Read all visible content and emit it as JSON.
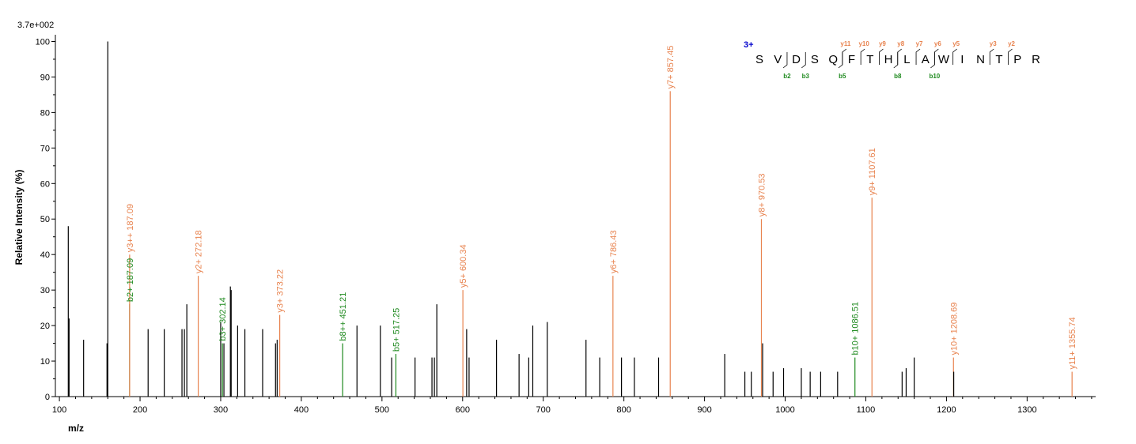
{
  "chart_data": {
    "type": "bar",
    "intensity_scale": "3.7e+002",
    "xlabel": "m/z",
    "ylabel": "Relative   Intensity (%)",
    "xlim": [
      95,
      1385
    ],
    "ylim": [
      0,
      101
    ],
    "xticks": [
      100,
      200,
      300,
      400,
      500,
      600,
      700,
      800,
      900,
      1000,
      1100,
      1200,
      1300
    ],
    "yticks": [
      0,
      10,
      20,
      30,
      40,
      50,
      60,
      70,
      80,
      90,
      100
    ],
    "colors": {
      "unassigned": "#000000",
      "y_ion": "#e8834f",
      "b_ion": "#1f8a1f",
      "charge": "#0000cc"
    },
    "peaks": [
      {
        "mz": 111,
        "rel": 48
      },
      {
        "mz": 112,
        "rel": 22
      },
      {
        "mz": 130,
        "rel": 16
      },
      {
        "mz": 159,
        "rel": 15
      },
      {
        "mz": 160,
        "rel": 100
      },
      {
        "mz": 187.09,
        "rel": 26,
        "ion": "b",
        "label": "b2+ 187.09"
      },
      {
        "mz": 187.09,
        "rel": 40,
        "ion": "y",
        "label": "y3++ 187.09"
      },
      {
        "mz": 210,
        "rel": 19
      },
      {
        "mz": 230,
        "rel": 19
      },
      {
        "mz": 252,
        "rel": 19
      },
      {
        "mz": 255,
        "rel": 19
      },
      {
        "mz": 258,
        "rel": 26
      },
      {
        "mz": 272.18,
        "rel": 34,
        "ion": "y",
        "label": "y2+ 272.18"
      },
      {
        "mz": 300,
        "rel": 21
      },
      {
        "mz": 302.14,
        "rel": 15,
        "ion": "b",
        "label": "b3+ 302.14"
      },
      {
        "mz": 304,
        "rel": 15
      },
      {
        "mz": 312,
        "rel": 31
      },
      {
        "mz": 313,
        "rel": 30
      },
      {
        "mz": 321,
        "rel": 20
      },
      {
        "mz": 330,
        "rel": 19
      },
      {
        "mz": 352,
        "rel": 19
      },
      {
        "mz": 368,
        "rel": 15
      },
      {
        "mz": 370,
        "rel": 16
      },
      {
        "mz": 373.22,
        "rel": 23,
        "ion": "y",
        "label": "y3+ 373.22"
      },
      {
        "mz": 451.21,
        "rel": 15,
        "ion": "b",
        "label": "b8++ 451.21"
      },
      {
        "mz": 469,
        "rel": 20
      },
      {
        "mz": 498,
        "rel": 20
      },
      {
        "mz": 512,
        "rel": 11
      },
      {
        "mz": 517.25,
        "rel": 12,
        "ion": "b",
        "label": "b5+ 517.25"
      },
      {
        "mz": 541,
        "rel": 11
      },
      {
        "mz": 562,
        "rel": 11
      },
      {
        "mz": 565,
        "rel": 11
      },
      {
        "mz": 568,
        "rel": 26
      },
      {
        "mz": 600.34,
        "rel": 30,
        "ion": "y",
        "label": "y5+ 600.34"
      },
      {
        "mz": 605,
        "rel": 19
      },
      {
        "mz": 608,
        "rel": 11
      },
      {
        "mz": 642,
        "rel": 16
      },
      {
        "mz": 670,
        "rel": 12
      },
      {
        "mz": 682,
        "rel": 11
      },
      {
        "mz": 687,
        "rel": 20
      },
      {
        "mz": 705,
        "rel": 21
      },
      {
        "mz": 753,
        "rel": 16
      },
      {
        "mz": 770,
        "rel": 11
      },
      {
        "mz": 786.43,
        "rel": 34,
        "ion": "y",
        "label": "y6+ 786.43"
      },
      {
        "mz": 797,
        "rel": 11
      },
      {
        "mz": 813,
        "rel": 11
      },
      {
        "mz": 843,
        "rel": 11
      },
      {
        "mz": 857.45,
        "rel": 86,
        "ion": "y",
        "label": "y7+ 857.45"
      },
      {
        "mz": 925,
        "rel": 12
      },
      {
        "mz": 950,
        "rel": 7
      },
      {
        "mz": 958,
        "rel": 7
      },
      {
        "mz": 970.53,
        "rel": 50,
        "ion": "y",
        "label": "y8+ 970.53"
      },
      {
        "mz": 972,
        "rel": 15
      },
      {
        "mz": 985,
        "rel": 7
      },
      {
        "mz": 998,
        "rel": 8
      },
      {
        "mz": 1020,
        "rel": 8
      },
      {
        "mz": 1031,
        "rel": 7
      },
      {
        "mz": 1044,
        "rel": 7
      },
      {
        "mz": 1065,
        "rel": 7
      },
      {
        "mz": 1086.51,
        "rel": 11,
        "ion": "b",
        "label": "b10+ 1086.51"
      },
      {
        "mz": 1107.61,
        "rel": 56,
        "ion": "y",
        "label": "y9+ 1107.61"
      },
      {
        "mz": 1145,
        "rel": 7
      },
      {
        "mz": 1150,
        "rel": 8
      },
      {
        "mz": 1160,
        "rel": 11
      },
      {
        "mz": 1208.69,
        "rel": 11,
        "ion": "y",
        "label": "y10+ 1208.69"
      },
      {
        "mz": 1209,
        "rel": 7
      },
      {
        "mz": 1355.74,
        "rel": 7,
        "ion": "y",
        "label": "y11+ 1355.74"
      }
    ],
    "sequence": {
      "charge": "3+",
      "residues": [
        "S",
        "V",
        "D",
        "S",
        "Q",
        "F",
        "T",
        "H",
        "L",
        "A",
        "W",
        "I",
        "N",
        "T",
        "P",
        "R"
      ],
      "b_ions": [
        {
          "label": "b2",
          "after": 2
        },
        {
          "label": "b3",
          "after": 3
        },
        {
          "label": "b5",
          "after": 5
        },
        {
          "label": "b8",
          "after": 8
        },
        {
          "label": "b10",
          "after": 10
        }
      ],
      "y_ions": [
        {
          "label": "y11",
          "before": 5
        },
        {
          "label": "y10",
          "before": 6
        },
        {
          "label": "y9",
          "before": 7
        },
        {
          "label": "y8",
          "before": 8
        },
        {
          "label": "y7",
          "before": 9
        },
        {
          "label": "y6",
          "before": 10
        },
        {
          "label": "y5",
          "before": 11
        },
        {
          "label": "y3",
          "before": 13
        },
        {
          "label": "y2",
          "before": 14
        }
      ]
    }
  }
}
